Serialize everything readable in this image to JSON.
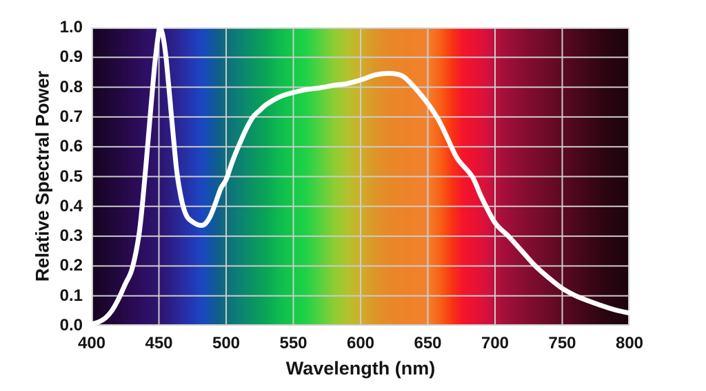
{
  "page": {
    "background": "#ffffff"
  },
  "chart_data": {
    "type": "line",
    "title": "",
    "xlabel": "Wavelength (nm)",
    "ylabel": "Relative Spectral Power",
    "xlim": [
      400,
      800
    ],
    "ylim": [
      0.0,
      1.0
    ],
    "x_tick_labels": [
      "400",
      "450",
      "500",
      "550",
      "600",
      "650",
      "700",
      "750",
      "800"
    ],
    "y_tick_labels": [
      "0.0",
      "0.1",
      "0.2",
      "0.3",
      "0.4",
      "0.5",
      "0.6",
      "0.7",
      "0.8",
      "0.9",
      "1.0"
    ],
    "grid": true,
    "gridline_color": "#cccccc",
    "line_color": "#ffffff",
    "line_width": 7,
    "legend": "none",
    "series": [
      {
        "name": "relative-spectral-power",
        "x": [
          400,
          405,
          410,
          415,
          420,
          425,
          430,
          435,
          438,
          441,
          444,
          447,
          450,
          451,
          453,
          455,
          457,
          459,
          461,
          463,
          465,
          468,
          471,
          475,
          480,
          484,
          488,
          492,
          496,
          500,
          505,
          510,
          515,
          520,
          525,
          530,
          540,
          550,
          560,
          570,
          580,
          590,
          600,
          610,
          618,
          625,
          632,
          640,
          650,
          658,
          665,
          672,
          683,
          690,
          700,
          710,
          720,
          730,
          740,
          750,
          760,
          770,
          780,
          790,
          800
        ],
        "y": [
          0.005,
          0.012,
          0.025,
          0.05,
          0.09,
          0.14,
          0.19,
          0.3,
          0.42,
          0.57,
          0.73,
          0.88,
          0.99,
          1.0,
          0.97,
          0.91,
          0.82,
          0.72,
          0.62,
          0.53,
          0.465,
          0.4,
          0.365,
          0.348,
          0.337,
          0.34,
          0.365,
          0.41,
          0.46,
          0.49,
          0.555,
          0.61,
          0.66,
          0.7,
          0.722,
          0.742,
          0.768,
          0.782,
          0.792,
          0.798,
          0.806,
          0.812,
          0.824,
          0.84,
          0.846,
          0.845,
          0.835,
          0.8,
          0.745,
          0.69,
          0.625,
          0.56,
          0.5,
          0.43,
          0.345,
          0.3,
          0.25,
          0.2,
          0.16,
          0.125,
          0.1,
          0.082,
          0.066,
          0.052,
          0.042
        ]
      }
    ],
    "background_spectrum_stops": [
      {
        "nm": 400,
        "color": "#16041f"
      },
      {
        "nm": 410,
        "color": "#1c0630"
      },
      {
        "nm": 420,
        "color": "#23083f"
      },
      {
        "nm": 430,
        "color": "#2a0a52"
      },
      {
        "nm": 440,
        "color": "#2d0f63"
      },
      {
        "nm": 450,
        "color": "#2d156e"
      },
      {
        "nm": 456,
        "color": "#2c1a7e"
      },
      {
        "nm": 465,
        "color": "#292898"
      },
      {
        "nm": 475,
        "color": "#2338b4"
      },
      {
        "nm": 482,
        "color": "#1c46c2"
      },
      {
        "nm": 488,
        "color": "#1253a8"
      },
      {
        "nm": 495,
        "color": "#0f6187"
      },
      {
        "nm": 500,
        "color": "#106e7c"
      },
      {
        "nm": 510,
        "color": "#0d8172"
      },
      {
        "nm": 520,
        "color": "#0a9463"
      },
      {
        "nm": 530,
        "color": "#0aa556"
      },
      {
        "nm": 540,
        "color": "#0fbc4e"
      },
      {
        "nm": 550,
        "color": "#13ca48"
      },
      {
        "nm": 560,
        "color": "#22d246"
      },
      {
        "nm": 570,
        "color": "#55d23e"
      },
      {
        "nm": 580,
        "color": "#8ccd33"
      },
      {
        "nm": 590,
        "color": "#b2c22d"
      },
      {
        "nm": 600,
        "color": "#cfae2a"
      },
      {
        "nm": 610,
        "color": "#dc9629"
      },
      {
        "nm": 620,
        "color": "#e68a28"
      },
      {
        "nm": 635,
        "color": "#ee8229"
      },
      {
        "nm": 650,
        "color": "#f2822e"
      },
      {
        "nm": 660,
        "color": "#f95c14"
      },
      {
        "nm": 668,
        "color": "#f93414"
      },
      {
        "nm": 676,
        "color": "#f5152a"
      },
      {
        "nm": 685,
        "color": "#ea1132"
      },
      {
        "nm": 695,
        "color": "#d01240"
      },
      {
        "nm": 705,
        "color": "#a80f3c"
      },
      {
        "nm": 720,
        "color": "#8a0d32"
      },
      {
        "nm": 740,
        "color": "#6b0b28"
      },
      {
        "nm": 760,
        "color": "#4b081c"
      },
      {
        "nm": 780,
        "color": "#2e0512"
      },
      {
        "nm": 800,
        "color": "#1b030c"
      }
    ]
  }
}
